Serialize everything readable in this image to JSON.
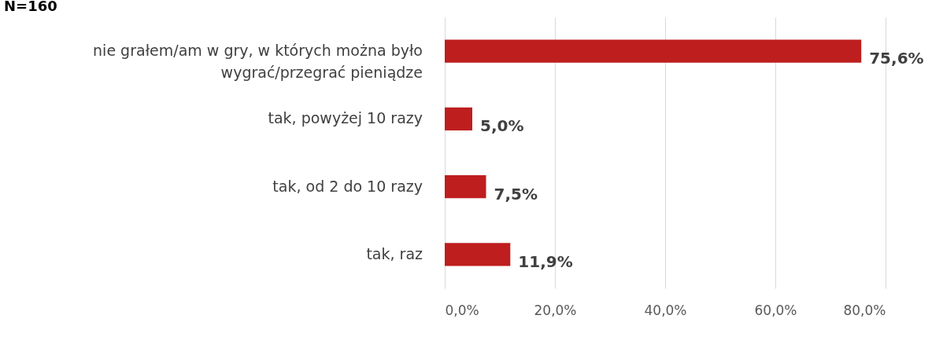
{
  "chart_data": {
    "type": "bar",
    "orientation": "horizontal",
    "title": "N=160",
    "categories": [
      "nie grałem/am w gry, w których można było wygrać/przegrać pieniądze",
      "tak, powyżej 10 razy",
      "tak, od 2 do 10 razy",
      "tak, raz"
    ],
    "values": [
      75.6,
      5.0,
      7.5,
      11.9
    ],
    "value_labels": [
      "75,6%",
      "5,0%",
      "7,5%",
      "11,9%"
    ],
    "color": "#be1e1e",
    "xlim": [
      0,
      80
    ],
    "xticks": [
      {
        "value": 0,
        "label": "0,0%"
      },
      {
        "value": 20,
        "label": "20,0%"
      },
      {
        "value": 40,
        "label": "40,0%"
      },
      {
        "value": 60,
        "label": "60,0%"
      },
      {
        "value": 80,
        "label": "80,0%"
      }
    ],
    "grid": "x"
  }
}
